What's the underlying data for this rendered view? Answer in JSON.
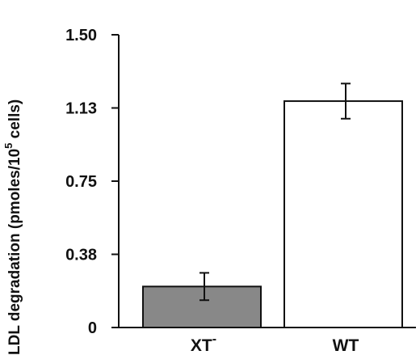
{
  "chart_data": {
    "type": "bar",
    "categories": [
      "XT",
      "WT"
    ],
    "category_superscripts": [
      "-",
      ""
    ],
    "values": [
      0.21,
      1.16
    ],
    "errors": [
      0.07,
      0.09
    ],
    "bar_colors": [
      "#888888",
      "#ffffff"
    ],
    "ylim": [
      0,
      1.5
    ],
    "yticks": [
      0,
      0.375,
      0.75,
      1.125,
      1.5
    ],
    "ytick_labels": [
      "0",
      "0.38",
      "0.75",
      "1.13",
      "1.50"
    ],
    "ylabel": {
      "prefix": "LDL   degradation   (pmoles/10",
      "superscript": "5",
      "suffix": "  cells)"
    },
    "xlabel": "",
    "grid": false
  }
}
